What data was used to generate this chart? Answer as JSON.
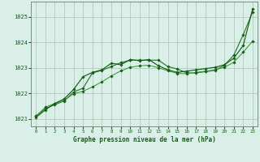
{
  "background_color": "#d8f0e8",
  "plot_bg_color": "#d8f0e8",
  "grid_color": "#b8c8c0",
  "spine_color": "#888888",
  "line_color_dark": "#1a5c1a",
  "line_color_mid": "#2d7a2d",
  "line_color_light": "#3a9a3a",
  "xlabel": "Graphe pression niveau de la mer (hPa)",
  "xlim": [
    -0.5,
    23.5
  ],
  "ylim": [
    1020.7,
    1025.6
  ],
  "yticks": [
    1021,
    1022,
    1023,
    1024,
    1025
  ],
  "xticks": [
    0,
    1,
    2,
    3,
    4,
    5,
    6,
    7,
    8,
    9,
    10,
    11,
    12,
    13,
    14,
    15,
    16,
    17,
    18,
    19,
    20,
    21,
    22,
    23
  ],
  "series1_x": [
    0,
    1,
    2,
    3,
    4,
    5,
    6,
    7,
    8,
    9,
    10,
    11,
    12,
    13,
    14,
    15,
    16,
    17,
    18,
    19,
    20,
    21,
    22,
    23
  ],
  "series1_y": [
    1021.1,
    1021.4,
    1021.55,
    1021.7,
    1022.05,
    1022.2,
    1022.8,
    1022.9,
    1023.05,
    1023.2,
    1023.3,
    1023.3,
    1023.3,
    1023.3,
    1023.05,
    1022.95,
    1022.8,
    1022.8,
    1022.85,
    1022.9,
    1023.1,
    1023.5,
    1024.3,
    1025.2
  ],
  "series2_x": [
    0,
    1,
    2,
    3,
    4,
    5,
    6,
    7,
    8,
    9,
    10,
    11,
    12,
    13,
    14,
    15,
    16,
    17,
    18,
    19,
    20,
    21,
    22,
    23
  ],
  "series2_y": [
    1021.1,
    1021.45,
    1021.6,
    1021.72,
    1021.98,
    1022.08,
    1022.25,
    1022.45,
    1022.68,
    1022.88,
    1023.02,
    1023.08,
    1023.1,
    1023.0,
    1022.88,
    1022.78,
    1022.77,
    1022.82,
    1022.87,
    1022.92,
    1023.02,
    1023.22,
    1023.62,
    1024.05
  ],
  "series3_x": [
    0,
    1,
    2,
    3,
    4,
    5,
    6,
    7,
    8,
    9,
    10,
    11,
    12,
    13,
    14,
    15,
    16,
    17,
    18,
    19,
    20,
    21,
    22,
    23
  ],
  "series3_y": [
    1021.05,
    1021.35,
    1021.6,
    1021.78,
    1022.15,
    1022.65,
    1022.82,
    1022.92,
    1023.18,
    1023.12,
    1023.32,
    1023.28,
    1023.32,
    1023.08,
    1022.92,
    1022.82,
    1022.87,
    1022.92,
    1022.97,
    1023.02,
    1023.12,
    1023.38,
    1023.88,
    1025.32
  ]
}
